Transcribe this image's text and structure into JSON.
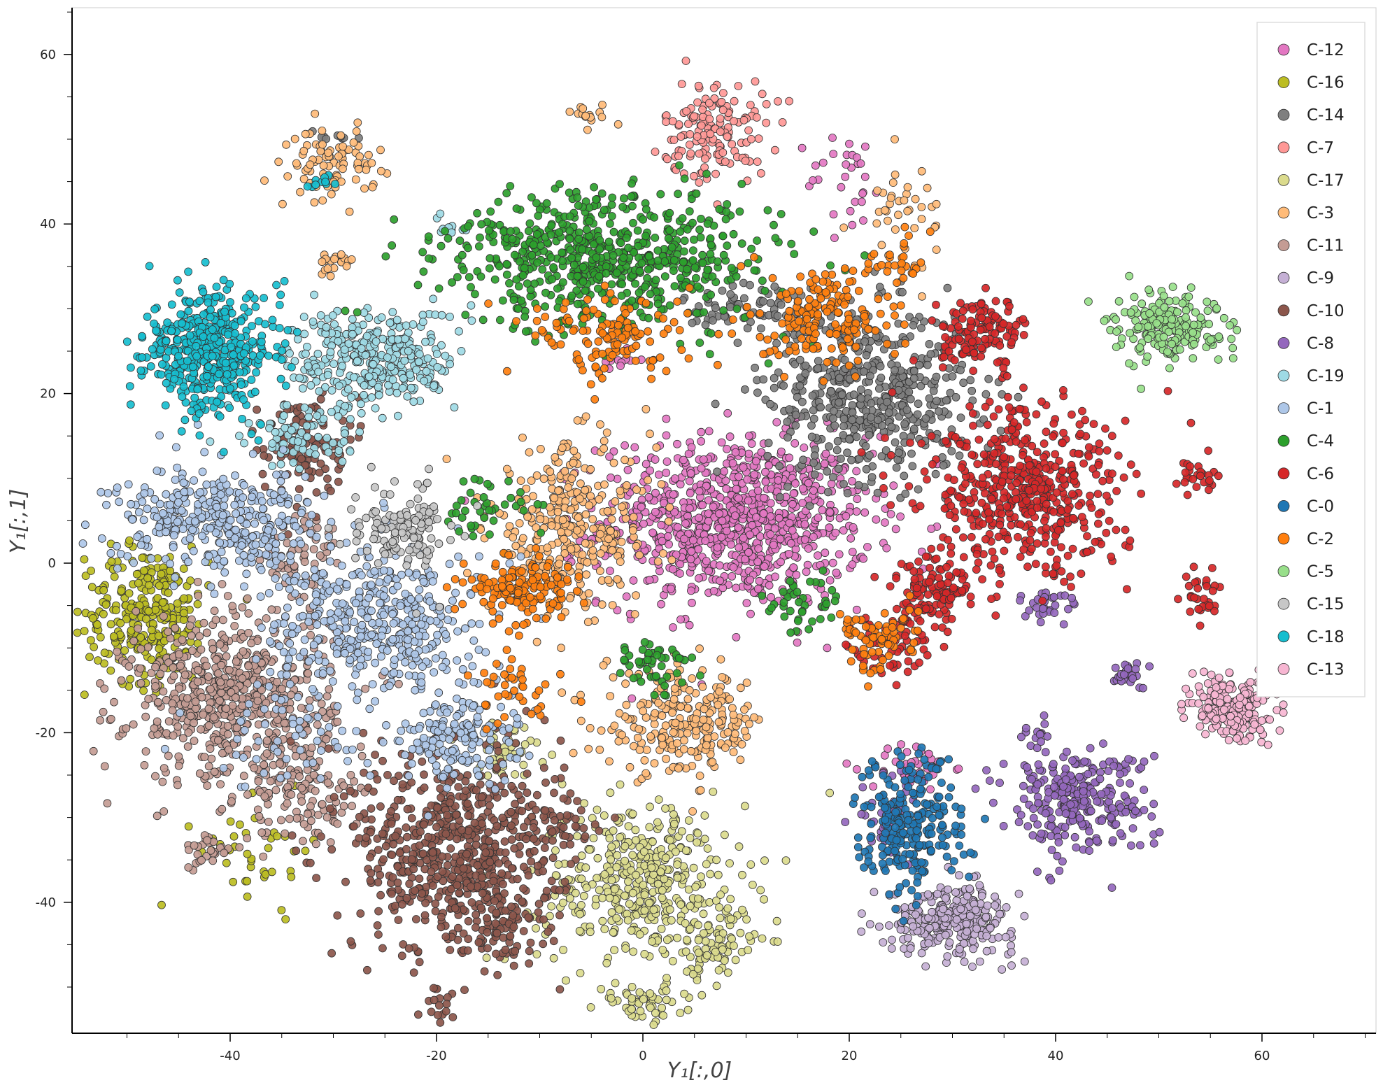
{
  "chart_data": {
    "type": "scatter",
    "title": "",
    "xlabel": "Y₁[:,0]",
    "ylabel": "Y₁[:,1]",
    "xlim": [
      -55,
      71
    ],
    "ylim": [
      -55,
      66
    ],
    "x_ticks": [
      "-40",
      "-20",
      "0",
      "20",
      "40",
      "60"
    ],
    "y_ticks": [
      "60",
      "40",
      "20",
      "0",
      "-20",
      "-40"
    ],
    "legend_position": "top-right",
    "grid": false,
    "series": [
      {
        "name": "C-12",
        "color": "#e377c2",
        "clusters": [
          [
            9,
            5,
            6.5,
            5,
            900
          ],
          [
            -2,
            24,
            1,
            1,
            10
          ],
          [
            20,
            45,
            2,
            3,
            30
          ],
          [
            26,
            -24,
            2,
            1.5,
            40
          ]
        ]
      },
      {
        "name": "C-16",
        "color": "#bcbd22",
        "clusters": [
          [
            -48,
            -6,
            3,
            4,
            280
          ],
          [
            -37,
            -34,
            3,
            3,
            40
          ]
        ]
      },
      {
        "name": "C-14",
        "color": "#7f7f7f",
        "clusters": [
          [
            22,
            20,
            5,
            5,
            520
          ],
          [
            10,
            30,
            3,
            2,
            70
          ],
          [
            -30,
            50,
            1,
            0.5,
            10
          ]
        ]
      },
      {
        "name": "C-7",
        "color": "#ff9896",
        "clusters": [
          [
            7,
            51,
            2.5,
            3,
            150
          ]
        ]
      },
      {
        "name": "C-17",
        "color": "#dbdb8d",
        "clusters": [
          [
            0,
            -38,
            5,
            5,
            420
          ],
          [
            7,
            -45,
            2,
            2,
            70
          ],
          [
            0,
            -52,
            2,
            1,
            50
          ],
          [
            -13,
            -22,
            2,
            1.5,
            40
          ]
        ]
      },
      {
        "name": "C-3",
        "color": "#ffbb78",
        "clusters": [
          [
            -7,
            4,
            4,
            5,
            320
          ],
          [
            4,
            -19,
            4,
            3,
            250
          ],
          [
            -30,
            47,
            2,
            2,
            90
          ],
          [
            25,
            42,
            2,
            3,
            40
          ],
          [
            -30,
            35,
            1,
            1,
            20
          ],
          [
            -5,
            53,
            1,
            0.6,
            15
          ]
        ]
      },
      {
        "name": "C-11",
        "color": "#c49c94",
        "clusters": [
          [
            -40,
            -16,
            5,
            5,
            600
          ],
          [
            -33,
            -27,
            3,
            3,
            120
          ],
          [
            -42,
            -34,
            1.2,
            1,
            30
          ],
          [
            -33,
            0,
            2,
            3,
            60
          ]
        ]
      },
      {
        "name": "C-9",
        "color": "#c5b0d5",
        "clusters": [
          [
            30,
            -42,
            3,
            2,
            280
          ]
        ]
      },
      {
        "name": "C-10",
        "color": "#8c564b",
        "clusters": [
          [
            -18,
            -34,
            5,
            6,
            650
          ],
          [
            -33,
            14,
            2,
            3,
            110
          ],
          [
            -14,
            -43,
            2,
            2,
            70
          ],
          [
            -20,
            -52,
            1,
            1,
            15
          ],
          [
            -8,
            -30,
            2,
            2,
            40
          ]
        ]
      },
      {
        "name": "C-8",
        "color": "#9467bd",
        "clusters": [
          [
            42,
            -28,
            3.5,
            3,
            270
          ],
          [
            47,
            -13,
            1,
            1,
            25
          ],
          [
            39,
            -5,
            1.5,
            1,
            30
          ],
          [
            38,
            -20,
            1,
            1,
            15
          ],
          [
            24,
            -30,
            1.5,
            3,
            40
          ]
        ]
      },
      {
        "name": "C-19",
        "color": "#9edae5",
        "clusters": [
          [
            -26,
            24,
            4,
            3,
            330
          ],
          [
            -33,
            15,
            3,
            2,
            80
          ],
          [
            -18,
            39,
            1,
            1,
            10
          ]
        ]
      },
      {
        "name": "C-1",
        "color": "#aec7e8",
        "clusters": [
          [
            -41,
            5,
            5,
            3,
            380
          ],
          [
            -26,
            -7,
            5,
            4,
            420
          ],
          [
            -18,
            -20,
            3,
            3,
            180
          ],
          [
            -35,
            -20,
            4,
            4,
            60
          ]
        ]
      },
      {
        "name": "C-4",
        "color": "#2ca02c",
        "clusters": [
          [
            -3,
            36,
            8,
            4,
            650
          ],
          [
            1,
            -12,
            2,
            1.5,
            50
          ],
          [
            -15,
            7,
            2,
            2,
            40
          ],
          [
            15,
            -5,
            2,
            2,
            40
          ]
        ]
      },
      {
        "name": "C-6",
        "color": "#d62728",
        "clusters": [
          [
            37,
            8,
            5,
            5,
            520
          ],
          [
            33,
            27,
            2,
            2,
            130
          ],
          [
            28,
            -3,
            2,
            2,
            110
          ],
          [
            24,
            -9,
            2,
            2,
            70
          ],
          [
            54,
            -4,
            1,
            1.5,
            30
          ],
          [
            54,
            10,
            1,
            1,
            25
          ]
        ]
      },
      {
        "name": "C-0",
        "color": "#1f77b4",
        "clusters": [
          [
            26,
            -31,
            2.5,
            4,
            250
          ]
        ]
      },
      {
        "name": "C-2",
        "color": "#ff7f0e",
        "clusters": [
          [
            -12,
            -3,
            2.5,
            1.8,
            150
          ],
          [
            18,
            29,
            3,
            3,
            170
          ],
          [
            -3,
            27,
            4,
            2.5,
            130
          ],
          [
            23,
            -9,
            2,
            2,
            70
          ],
          [
            -12,
            -15,
            2,
            2,
            40
          ],
          [
            25,
            35,
            2,
            2,
            30
          ]
        ]
      },
      {
        "name": "C-5",
        "color": "#98df8a",
        "clusters": [
          [
            51,
            28,
            2.5,
            2,
            200
          ]
        ]
      },
      {
        "name": "C-15",
        "color": "#c7c7c7",
        "clusters": [
          [
            -23,
            4,
            2.5,
            2.5,
            130
          ]
        ]
      },
      {
        "name": "C-18",
        "color": "#17becf",
        "clusters": [
          [
            -42,
            25,
            3,
            3.5,
            470
          ],
          [
            -31,
            45,
            1,
            0.5,
            10
          ]
        ]
      },
      {
        "name": "C-13",
        "color": "#f7b6d2",
        "clusters": [
          [
            57,
            -17,
            2,
            2,
            200
          ]
        ]
      }
    ]
  }
}
